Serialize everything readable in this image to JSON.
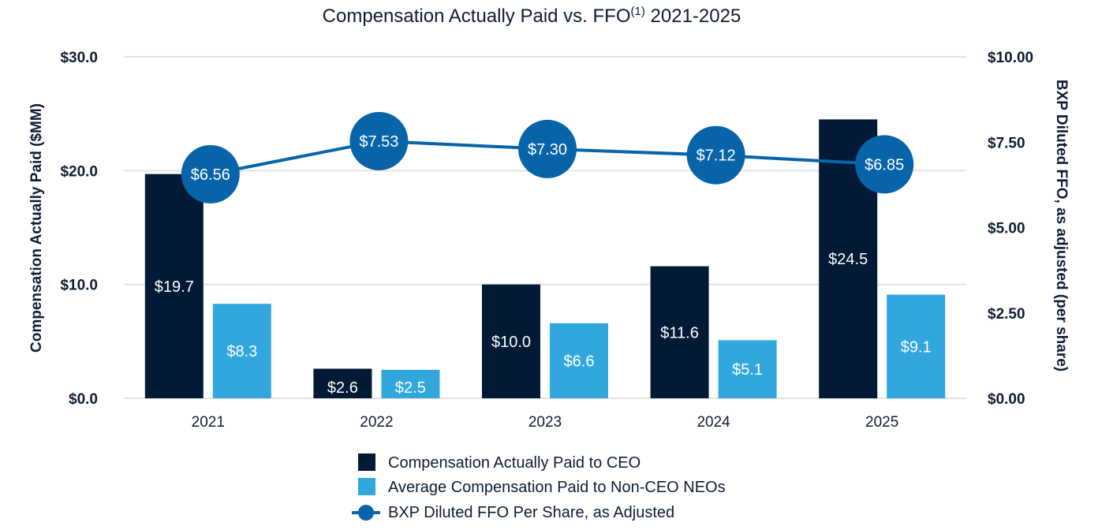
{
  "chart_data": {
    "type": "bar",
    "title": "Compensation Actually Paid vs. FFO",
    "title_superscript": "(1)",
    "title_suffix": " 2021-2025",
    "categories": [
      "2021",
      "2022",
      "2023",
      "2024",
      "2025"
    ],
    "ylabel": "Compensation Actually Paid ($MM)",
    "ylabel_right": "BXP Diluted FFO, as adjusted (per share)",
    "ylim": [
      0,
      30
    ],
    "ylim_right": [
      0,
      10
    ],
    "yticks": [
      "$0.0",
      "$10.0",
      "$20.0",
      "$30.0"
    ],
    "yticks_right": [
      "$0.00",
      "$2.50",
      "$5.00",
      "$7.50",
      "$10.00"
    ],
    "grid": true,
    "legend_position": "bottom",
    "series": [
      {
        "name": "Compensation Actually Paid to CEO",
        "type": "bar",
        "axis": "left",
        "color": "#021a36",
        "values": [
          19.7,
          2.6,
          10.0,
          11.6,
          24.5
        ],
        "labels": [
          "$19.7",
          "$2.6",
          "$10.0",
          "$11.6",
          "$24.5"
        ]
      },
      {
        "name": "Average Compensation Paid to Non-CEO NEOs",
        "type": "bar",
        "axis": "left",
        "color": "#32a7dd",
        "values": [
          8.3,
          2.5,
          6.6,
          5.1,
          9.1
        ],
        "labels": [
          "$8.3",
          "$2.5",
          "$6.6",
          "$5.1",
          "$9.1"
        ]
      },
      {
        "name": "BXP Diluted FFO Per Share, as Adjusted",
        "type": "line",
        "axis": "right",
        "color": "#0764a8",
        "values": [
          6.56,
          7.53,
          7.3,
          7.12,
          6.85
        ],
        "labels": [
          "$6.56",
          "$7.53",
          "$7.30",
          "$7.12",
          "$6.85"
        ]
      }
    ]
  }
}
